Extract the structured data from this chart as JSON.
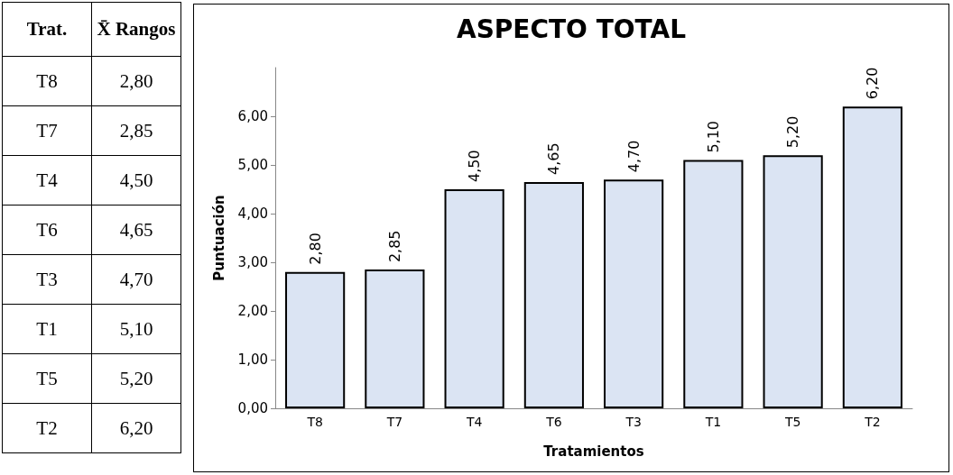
{
  "chart_data": {
    "type": "bar",
    "title": "ASPECTO TOTAL",
    "xlabel": "Tratamientos",
    "ylabel": "Puntuación",
    "categories": [
      "T8",
      "T7",
      "T4",
      "T6",
      "T3",
      "T1",
      "T5",
      "T2"
    ],
    "values": [
      2.8,
      2.85,
      4.5,
      4.65,
      4.7,
      5.1,
      5.2,
      6.2
    ],
    "color": "#dbe4f3",
    "ylim": [
      0,
      7
    ],
    "yticks": [
      {
        "value": 0,
        "label": "0,00"
      },
      {
        "value": 1,
        "label": "1,00"
      },
      {
        "value": 2,
        "label": "2,00"
      },
      {
        "value": 3,
        "label": "3,00"
      },
      {
        "value": 4,
        "label": "4,00"
      },
      {
        "value": 5,
        "label": "5,00"
      },
      {
        "value": 6,
        "label": "6,00"
      }
    ],
    "value_labels": [
      "2,80",
      "2,85",
      "4,50",
      "4,65",
      "4,70",
      "5,10",
      "5,20",
      "6,20"
    ],
    "annotations": [
      "Trat.",
      "X̄ Rangos"
    ],
    "grid": false
  }
}
